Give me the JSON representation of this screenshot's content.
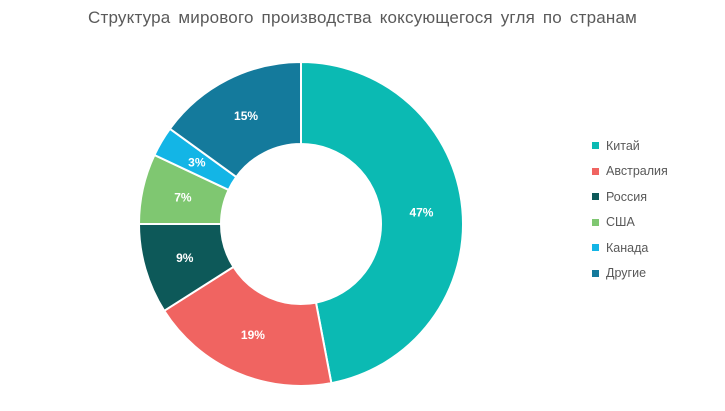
{
  "chart_data": {
    "type": "pie",
    "variant": "donut",
    "title": "Структура мирового производства коксующегося угля по странам",
    "categories": [
      "Китай",
      "Австралия",
      "Россия",
      "США",
      "Канада",
      "Другие"
    ],
    "values": [
      47,
      19,
      9,
      7,
      3,
      15
    ],
    "value_labels": [
      "47%",
      "19%",
      "9%",
      "7%",
      "3%",
      "15%"
    ],
    "colors": [
      "#0bbab3",
      "#f06461",
      "#0d5959",
      "#7fc771",
      "#13b5e6",
      "#147a9c"
    ],
    "legend_position": "right"
  }
}
